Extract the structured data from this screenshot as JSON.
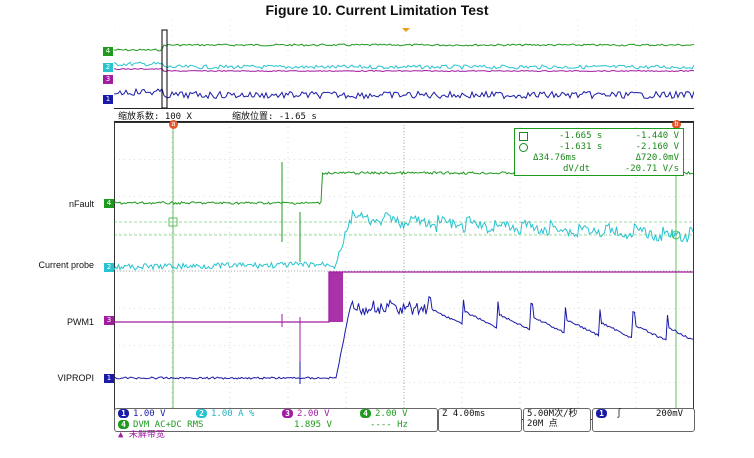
{
  "figure_title": "Figure 10. Current Limitation Test",
  "channels": [
    {
      "num": "1",
      "name": "VIPROPI",
      "color": "#1a1aa8",
      "scale": "1.00 V"
    },
    {
      "num": "2",
      "name": "Current probe",
      "color": "#27c3cf",
      "scale": "1.00 A"
    },
    {
      "num": "3",
      "name": "PWM1",
      "color": "#a01ca0",
      "scale": "2.00 V"
    },
    {
      "num": "4",
      "name": "nFault",
      "color": "#1f9a1f",
      "scale": "2.00 V"
    }
  ],
  "zoom_info": {
    "zoom_factor_label": "缩放系数: 100 X",
    "zoom_position_label": "缩放位置: -1.65 s"
  },
  "cursor_markers": {
    "a": "a",
    "b": "b"
  },
  "cursor_readout": {
    "a_time": "-1.665 s",
    "a_value": "-1.440 V",
    "b_time": "-1.631 s",
    "b_value": "-2.160 V",
    "delta_time": "Δ34.76ms",
    "delta_value": "Δ720.0mV",
    "dvdt_label": "dV/dt",
    "dvdt_value": "-20.71 V/s"
  },
  "bottom_bar": {
    "ch1_scale": "1.00 V",
    "ch2_scale": "1.00 A",
    "ch2_suffix": "%",
    "ch3_scale": "2.00 V",
    "ch4_scale": "2.00 V",
    "timebase": "4.00ms",
    "sample_rate": "5.00M次/秒",
    "record_length": "20M 点",
    "trigger_channel": "1",
    "trigger_level": "200mV",
    "dvm_label": "DVM AC+DC RMS",
    "dvm_value": "1.895 V",
    "dvm_freq": "---- Hz",
    "dvm_status": "未解带宽"
  },
  "colors": {
    "grid": "#9a9a9a",
    "cursor": "#3cb43c",
    "marker": "#e4572e"
  }
}
